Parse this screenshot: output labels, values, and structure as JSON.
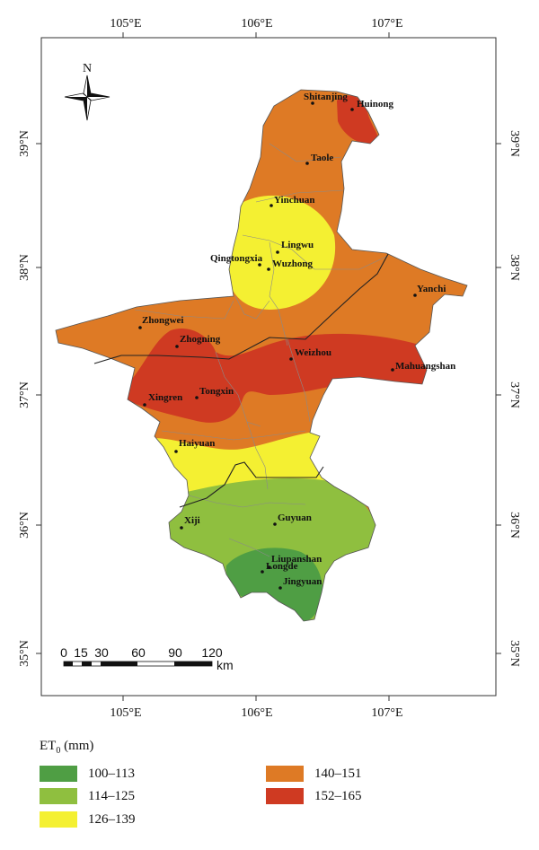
{
  "map": {
    "axes": {
      "top_labels": [
        "105°E",
        "106°E",
        "107°E"
      ],
      "bottom_labels": [
        "105°E",
        "106°E",
        "107°E"
      ],
      "left_labels": [
        "39°N",
        "38°N",
        "37°N",
        "36°N",
        "35°N"
      ],
      "right_labels": [
        "39°N",
        "38°N",
        "37°N",
        "36°N",
        "35°N"
      ]
    },
    "north_label": "N",
    "cities": [
      {
        "name": "Shitanjing"
      },
      {
        "name": "Huinong"
      },
      {
        "name": "Taole"
      },
      {
        "name": "Yinchuan"
      },
      {
        "name": "Lingwu"
      },
      {
        "name": "Qingtongxia"
      },
      {
        "name": "Wuzhong"
      },
      {
        "name": "Yanchi"
      },
      {
        "name": "Zhongwei"
      },
      {
        "name": "Zhogning"
      },
      {
        "name": "Weizhou"
      },
      {
        "name": "Mahuangshan"
      },
      {
        "name": "Xingren"
      },
      {
        "name": "Tongxin"
      },
      {
        "name": "Haiyuan"
      },
      {
        "name": "Xiji"
      },
      {
        "name": "Guyuan"
      },
      {
        "name": "Liupanshan"
      },
      {
        "name": "Longde"
      },
      {
        "name": "Jingyuan"
      }
    ],
    "scale_bar": {
      "ticks": [
        "0",
        "15",
        "30",
        "60",
        "90",
        "120"
      ],
      "unit": "km"
    }
  },
  "legend": {
    "title_main": "ET",
    "title_sub": "0",
    "title_unit": " (mm)",
    "classes": [
      {
        "label": "100–113",
        "color": "#4f9e44"
      },
      {
        "label": "114–125",
        "color": "#8fbf3f"
      },
      {
        "label": "126–139",
        "color": "#f4f032"
      },
      {
        "label": "140–151",
        "color": "#de7a25"
      },
      {
        "label": "152–165",
        "color": "#cf3a22"
      }
    ]
  }
}
